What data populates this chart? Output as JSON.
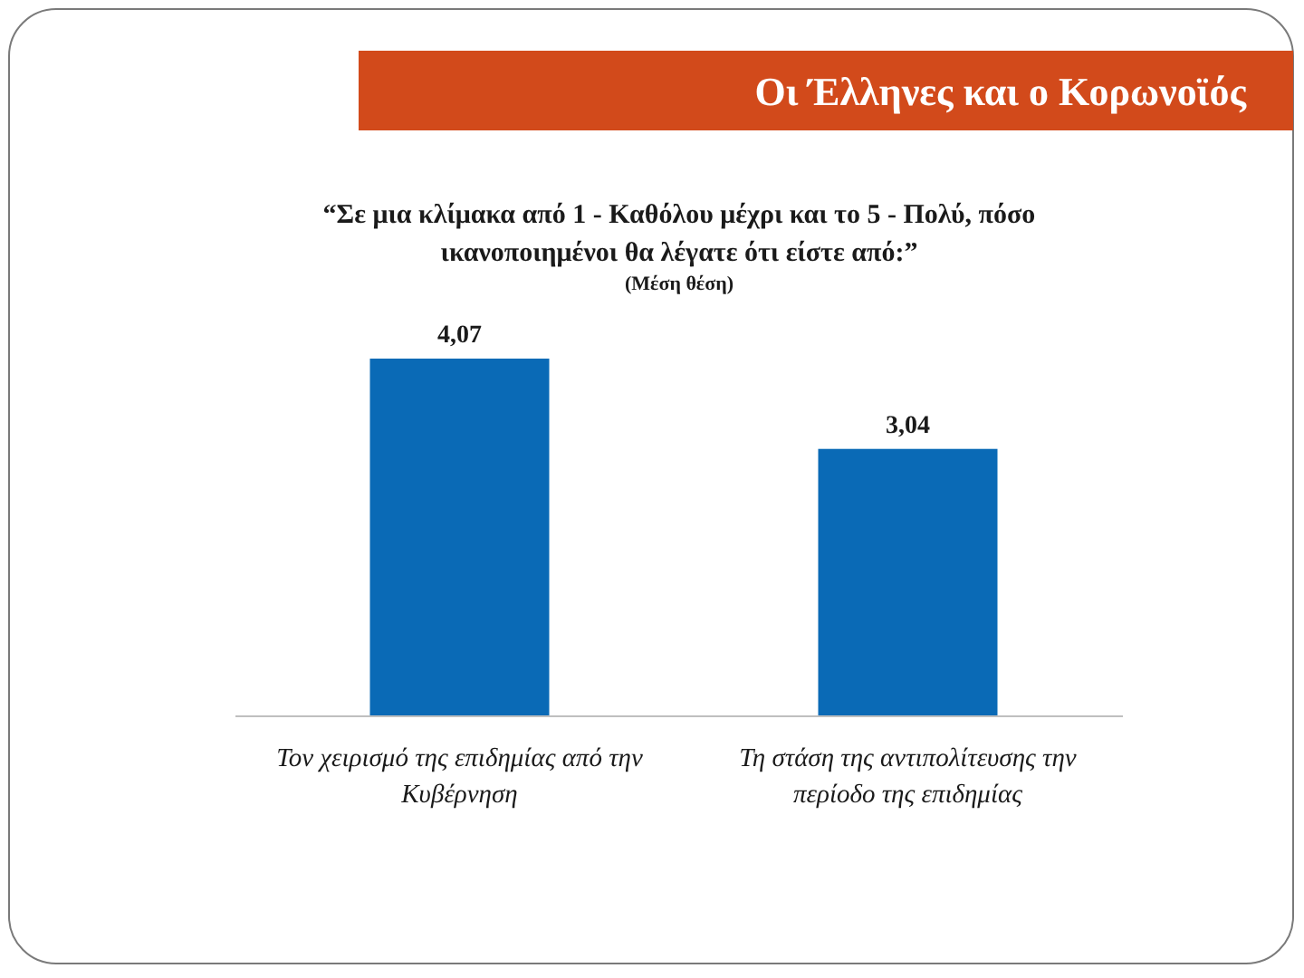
{
  "chart_data": {
    "type": "bar",
    "title": "Οι Έλληνες και ο Κορωνοϊός",
    "subtitle": "“Σε μια κλίμακα από 1 - Καθόλου μέχρι και το 5 - Πολύ, πόσο ικανοποιημένοι θα λέγατε ότι είστε από:”",
    "annotations": [
      "(Μέση θέση)"
    ],
    "categories": [
      "Τον χειρισμό της επιδημίας από την Κυβέρνηση",
      "Τη στάση της αντιπολίτευσης την περίοδο της επιδημίας"
    ],
    "values": [
      4.07,
      3.04
    ],
    "color": "#0a6ab6",
    "value_labels": [
      "4,07",
      "3,04"
    ]
  }
}
